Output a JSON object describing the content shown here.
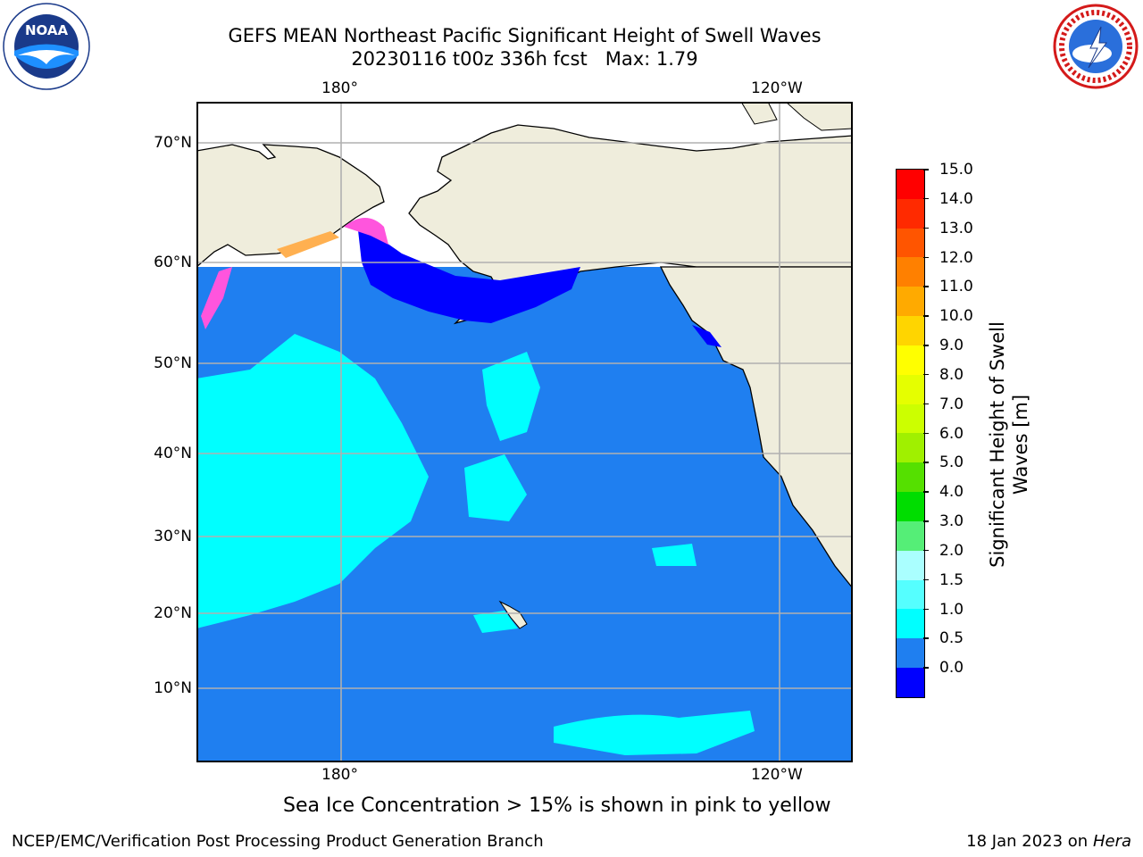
{
  "title": {
    "line1": "GEFS MEAN Northeast Pacific Significant Height of Swell Waves",
    "line2": "20230116 t00z 336h fcst   Max: 1.79"
  },
  "logos": {
    "left": "NOAA",
    "right": "NATIONAL WEATHER SERVICE",
    "left_ring_text": "NATIONAL OCEANIC AND ATMOSPHERIC ADMINISTRATION · U.S. DEPARTMENT OF COMMERCE"
  },
  "map": {
    "lon_labels_top": [
      "180°",
      "120°W"
    ],
    "lon_labels_bottom": [
      "180°",
      "120°W"
    ],
    "lat_labels": [
      "70°N",
      "60°N",
      "50°N",
      "40°N",
      "30°N",
      "20°N",
      "10°N"
    ],
    "colors": {
      "land": "#efeddc",
      "ocean_0_5_1_0": "#1f7ff0",
      "ocean_1_0_1_5": "#00ffff",
      "ocean_0_0_0_5": "#0000ff",
      "ice_pink": "#ff55dd",
      "ice_orange": "#ffb050",
      "grid": "#b0b0b0"
    }
  },
  "colorbar": {
    "title_line1": "Significant Height of Swell",
    "title_line2": "Waves [m]",
    "ticks": [
      "15.0",
      "14.0",
      "13.0",
      "12.0",
      "11.0",
      "10.0",
      "9.0",
      "8.0",
      "7.0",
      "6.0",
      "5.0",
      "4.0",
      "3.0",
      "2.0",
      "1.5",
      "1.0",
      "0.5",
      "0.0"
    ],
    "colors_top_to_bottom": [
      "#ff0000",
      "#ff2a00",
      "#ff5500",
      "#ff8000",
      "#ffaa00",
      "#ffd500",
      "#ffff00",
      "#e5ff00",
      "#ccff00",
      "#a0f000",
      "#55e000",
      "#00dd00",
      "#55ee77",
      "#aaffff",
      "#55ffff",
      "#00ffff",
      "#1f7ff0",
      "#0000ff"
    ]
  },
  "note": "Sea Ice Concentration > 15% is shown in pink to yellow",
  "footer": {
    "left": "NCEP/EMC/Verification Post Processing Product Generation Branch",
    "right_prefix": "18 Jan 2023 on ",
    "right_host": "Hera"
  }
}
